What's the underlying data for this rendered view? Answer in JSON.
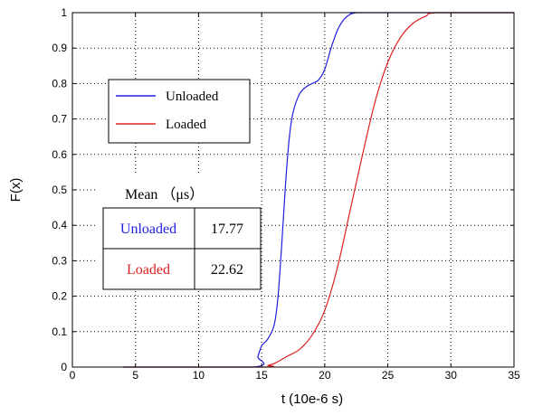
{
  "chart_data": {
    "type": "line",
    "xlabel": "t (10e-6 s)",
    "ylabel": "F(x)",
    "xlim": [
      0,
      35
    ],
    "ylim": [
      0,
      1
    ],
    "xticks": [
      "0",
      "5",
      "10",
      "15",
      "20",
      "25",
      "30",
      "35"
    ],
    "yticks": [
      "0",
      "0.1",
      "0.2",
      "0.3",
      "0.4",
      "0.5",
      "0.6",
      "0.7",
      "0.8",
      "0.9",
      "1"
    ],
    "grid": true,
    "legend": {
      "placement": "upper-left",
      "entries": [
        "Unloaded",
        "Loaded"
      ]
    },
    "series": [
      {
        "name": "Unloaded",
        "color": "#2020e0",
        "x": [
          4,
          14.3,
          14.7,
          15.0,
          15.5,
          16.0,
          16.3,
          16.6,
          16.9,
          17.2,
          17.5,
          18.0,
          18.5,
          19.0,
          19.5,
          20.0,
          20.5,
          21.0,
          21.5,
          22.0,
          22.5,
          23.0,
          35
        ],
        "y": [
          0,
          0,
          0.03,
          0.06,
          0.08,
          0.12,
          0.2,
          0.35,
          0.52,
          0.65,
          0.72,
          0.77,
          0.79,
          0.8,
          0.81,
          0.84,
          0.9,
          0.95,
          0.98,
          0.995,
          1,
          1,
          1
        ]
      },
      {
        "name": "Loaded",
        "color": "#e02020",
        "x": [
          4,
          15.0,
          15.5,
          16.0,
          17.0,
          18.0,
          19.0,
          20.0,
          21.0,
          22.0,
          23.0,
          24.0,
          25.0,
          26.0,
          27.0,
          28.0,
          29.0,
          35
        ],
        "y": [
          0,
          0,
          0.005,
          0.01,
          0.03,
          0.05,
          0.09,
          0.16,
          0.28,
          0.44,
          0.6,
          0.75,
          0.86,
          0.93,
          0.97,
          0.99,
          1,
          1
        ]
      }
    ]
  },
  "mean_table": {
    "title": "Mean （μs）",
    "rows": [
      {
        "label": "Unloaded",
        "value": "17.77",
        "color": "#2020e0"
      },
      {
        "label": "Loaded",
        "value": "22.62",
        "color": "#e02020"
      }
    ]
  }
}
